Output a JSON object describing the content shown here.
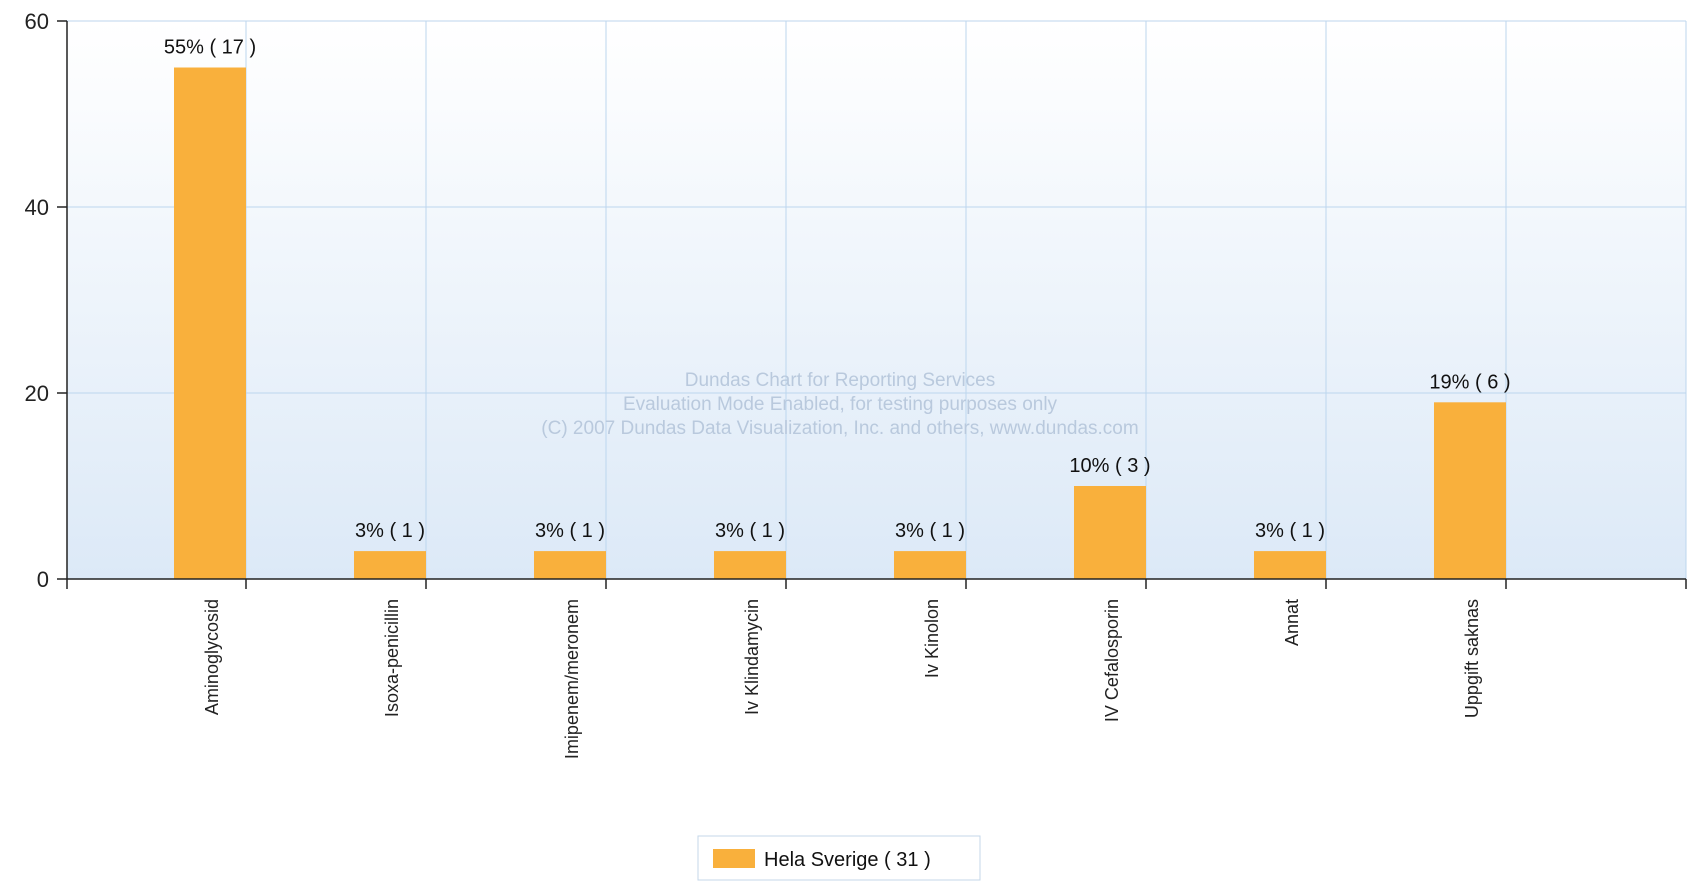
{
  "chart_data": {
    "type": "bar",
    "categories": [
      "Aminoglycosid",
      "Isoxa-penicillin",
      "Imipenem/meronem",
      "Iv Klindamycin",
      "Iv Kinolon",
      "IV Cefalosporin",
      "Annat",
      "Uppgift saknas"
    ],
    "series": [
      {
        "name": "Hela Sverige  ( 31 )",
        "values": [
          55,
          3,
          3,
          3,
          3,
          10,
          3,
          19
        ],
        "labels": [
          "55% ( 17 )",
          "3% ( 1 )",
          "3% ( 1 )",
          "3% ( 1 )",
          "3% ( 1 )",
          "10% ( 3 )",
          "3% ( 1 )",
          "19% ( 6 )"
        ],
        "color": "#F9B03C"
      }
    ],
    "ylim": [
      0,
      60
    ],
    "yticks": [
      "0",
      "20",
      "40",
      "60"
    ],
    "grid": true,
    "legend_position": "bottom-center",
    "title": "",
    "xlabel": "",
    "ylabel": ""
  },
  "watermark": {
    "line1": "Dundas Chart for Reporting Services",
    "line2": "Evaluation Mode Enabled, for testing purposes only",
    "line3": "(C) 2007 Dundas Data Visualization, Inc. and others, www.dundas.com"
  },
  "colors": {
    "bar": "#F9B03C",
    "grid": "#bcd6ee",
    "axis": "#222222",
    "plot_top": "#ffffff",
    "plot_bottom": "#dce9f7"
  }
}
